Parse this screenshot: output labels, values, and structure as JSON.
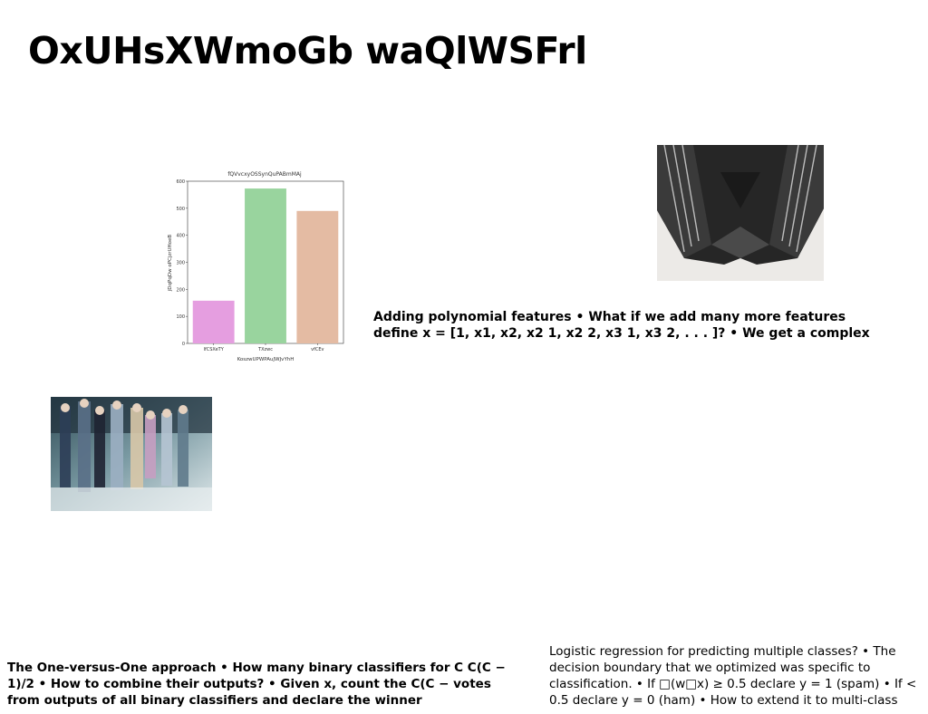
{
  "slide": {
    "title": "OxUHsXWmoGb waQlWSFrl",
    "text_block_1": "Adding polynomial features • What if we add many more features define x = [1, x1, x2, x2 1, x2 2, x3 1, x3 2, . . . ]? • We get a complex",
    "text_block_2": "The One-versus-One approach • How many binary classifiers for C C(C − 1)/2 • How to combine their outputs? • Given x, count the C(C − votes from outputs of all binary classifiers and declare the winner",
    "text_block_3": "Logistic regression for predicting multiple classes? • The decision boundary that we optimized was specific to classification. • If □(w□x) ≥ 0.5 declare y = 1 (spam) • If < 0.5 declare y = 0 (ham) • How to extend it to multi-class"
  },
  "chart_data": {
    "type": "bar",
    "title": "fQVvcxyOSSynQuPABmMAj",
    "xlabel": "KoszwUPWPAuJWJvYhH",
    "ylabel": "jDqPqDw oPCjzrUHoeB",
    "categories": [
      "lfCSXeTY",
      "TXzwc",
      "vfCEv"
    ],
    "values": [
      158,
      573,
      490
    ],
    "colors": [
      "#e59ee0",
      "#99d49e",
      "#e4bba3"
    ],
    "ylim": [
      0,
      600
    ],
    "yticks": [
      "0",
      "100",
      "200",
      "300",
      "400",
      "500",
      "600"
    ]
  },
  "images": {
    "architecture": "building-underside-photo",
    "painting": "figures-painting"
  }
}
